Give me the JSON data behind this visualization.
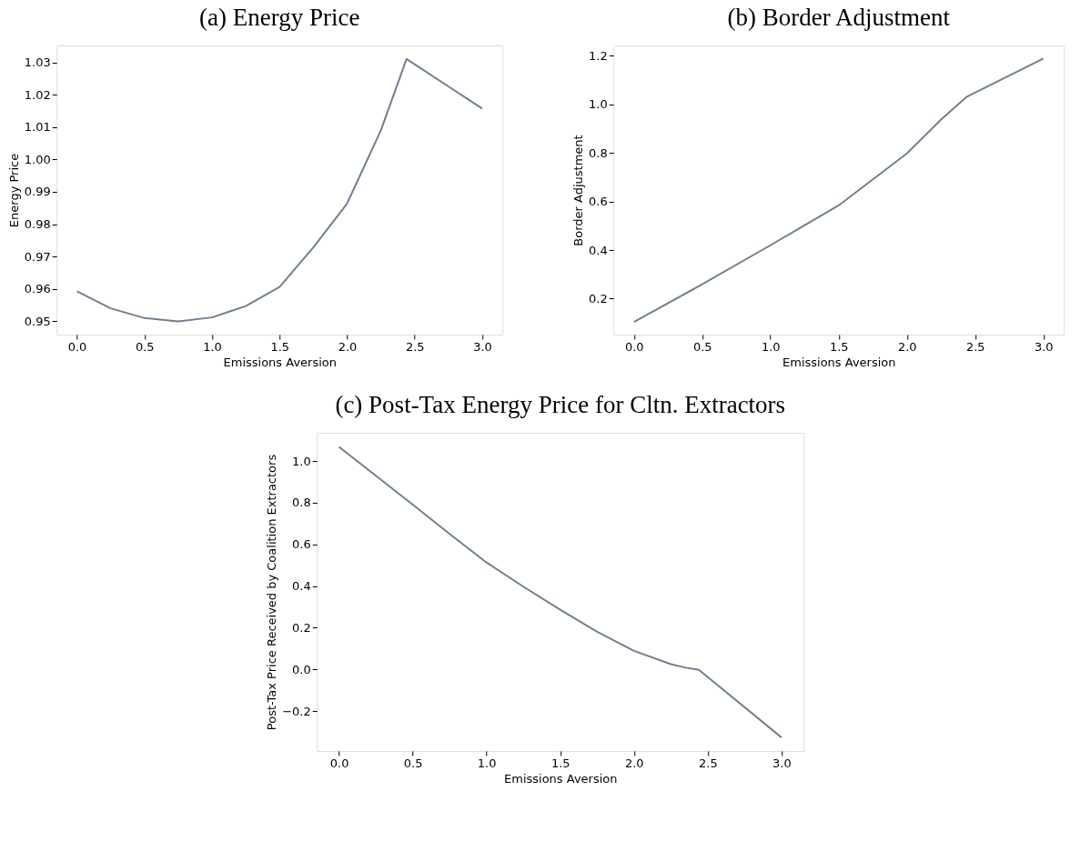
{
  "chart_data": [
    {
      "type": "line",
      "title": "(a) Energy Price",
      "xlabel": "Emissions Aversion",
      "ylabel": "Energy Price",
      "grid": false,
      "x": [
        0,
        0.25,
        0.5,
        0.75,
        1.0,
        1.25,
        1.5,
        1.75,
        2.0,
        2.25,
        2.44,
        3.0
      ],
      "series": [
        {
          "color": "#708090",
          "values": [
            0.9593,
            0.954,
            0.951,
            0.95,
            0.9512,
            0.9547,
            0.9606,
            0.9728,
            0.9864,
            1.009,
            1.031,
            1.0157
          ]
        }
      ],
      "xlim": [
        -0.15,
        3.15
      ],
      "ylim": [
        0.9459,
        1.0352
      ],
      "xticks": [
        {
          "value": 0,
          "label": "0.0"
        },
        0.5,
        {
          "value": 1,
          "label": "1.0"
        },
        1.5,
        {
          "value": 2,
          "label": "2.0"
        },
        2.5,
        {
          "value": 3,
          "label": "3.0"
        }
      ],
      "yticks": [
        0.95,
        0.96,
        0.97,
        0.98,
        0.99,
        {
          "value": 1,
          "label": "1.00"
        },
        1.01,
        1.02,
        1.03
      ]
    },
    {
      "type": "line",
      "title": "(b) Border Adjustment",
      "xlabel": "Emissions Aversion",
      "ylabel": "Border Adjustment",
      "grid": false,
      "x": [
        0,
        0.5,
        1.0,
        1.5,
        2.0,
        2.25,
        2.44,
        3.0
      ],
      "series": [
        {
          "color": "#708090",
          "values": [
            0.104,
            0.259,
            0.42,
            0.584,
            0.798,
            0.938,
            1.032,
            1.189
          ]
        }
      ],
      "xlim": [
        -0.15,
        3.15
      ],
      "ylim": [
        0.052,
        1.243
      ],
      "xticks": [
        {
          "value": 0,
          "label": "0.0"
        },
        0.5,
        {
          "value": 1,
          "label": "1.0"
        },
        1.5,
        {
          "value": 2,
          "label": "2.0"
        },
        2.5,
        {
          "value": 3,
          "label": "3.0"
        }
      ],
      "yticks": [
        0.2,
        0.4,
        0.6,
        0.8,
        {
          "value": 1,
          "label": "1.0"
        },
        1.2
      ]
    },
    {
      "type": "line",
      "title": "(c) Post-Tax Energy Price for Cltn. Extractors",
      "xlabel": "Emissions Aversion",
      "ylabel": "Post-Tax Price Received by Coalition Extractors",
      "grid": false,
      "x": [
        0,
        0.25,
        0.5,
        0.75,
        1.0,
        1.25,
        1.5,
        1.75,
        2.0,
        2.25,
        2.35,
        2.44,
        3.0
      ],
      "series": [
        {
          "color": "#708090",
          "values": [
            1.068,
            0.93,
            0.791,
            0.65,
            0.513,
            0.397,
            0.286,
            0.18,
            0.089,
            0.025,
            0.008,
            -0.002,
            -0.327
          ]
        }
      ],
      "xlim": [
        -0.15,
        3.15
      ],
      "ylim": [
        -0.392,
        1.136
      ],
      "xticks": [
        {
          "value": 0,
          "label": "0.0"
        },
        0.5,
        {
          "value": 1,
          "label": "1.0"
        },
        1.5,
        {
          "value": 2,
          "label": "2.0"
        },
        2.5,
        {
          "value": 3,
          "label": "3.0"
        }
      ],
      "yticks": [
        {
          "value": -0.2,
          "label": "−0.2"
        },
        {
          "value": 0,
          "label": "0.0"
        },
        0.2,
        0.4,
        0.6,
        0.8,
        {
          "value": 1,
          "label": "1.0"
        }
      ]
    }
  ]
}
